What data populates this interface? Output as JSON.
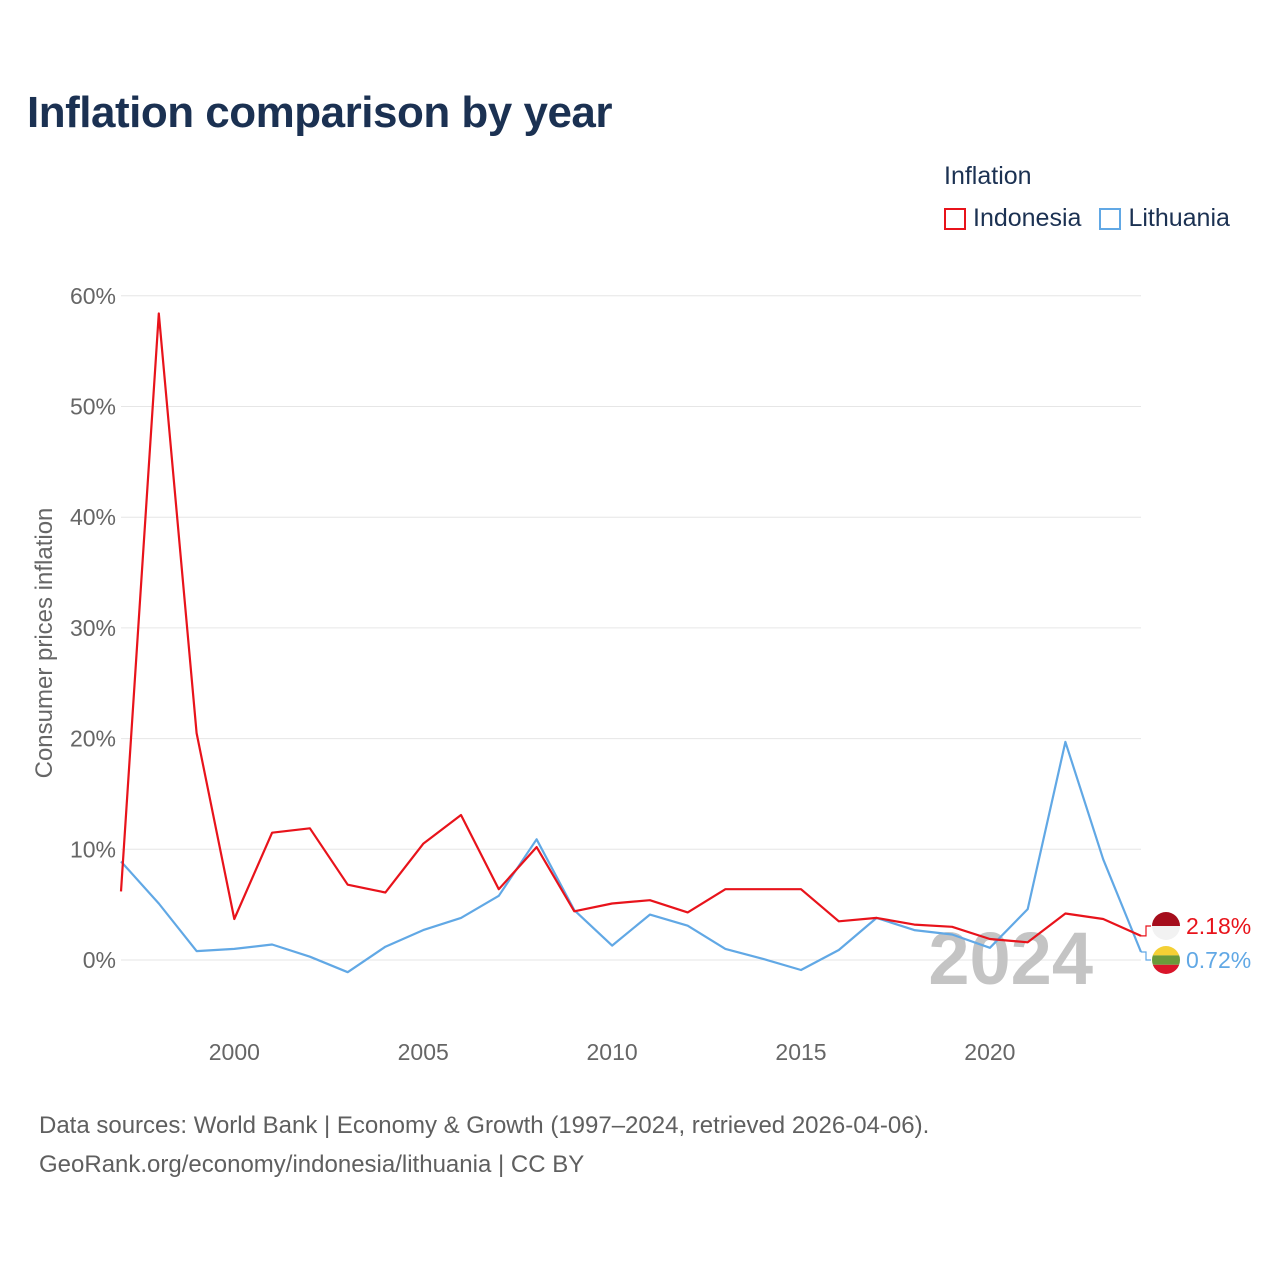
{
  "title": "Inflation comparison by year",
  "legend": {
    "title": "Inflation",
    "items": [
      {
        "label": "Indonesia",
        "color": "#e8131b"
      },
      {
        "label": "Lithuania",
        "color": "#61a8e5"
      }
    ]
  },
  "sources": {
    "line1": "Data sources: World Bank | Economy & Growth (1997–2024, retrieved 2026-04-06).",
    "line2": "GeoRank.org/economy/indonesia/lithuania | CC BY"
  },
  "chart_data": {
    "type": "line",
    "title": "Inflation comparison by year",
    "xlabel": "",
    "ylabel": "Consumer prices inflation",
    "xlim": [
      1997,
      2024
    ],
    "ylim": [
      -4,
      60
    ],
    "y_ticks": [
      0,
      10,
      20,
      30,
      40,
      50,
      60
    ],
    "y_tick_labels": [
      "0%",
      "10%",
      "20%",
      "30%",
      "40%",
      "50%",
      "60%"
    ],
    "x_ticks": [
      2000,
      2005,
      2010,
      2015,
      2020
    ],
    "x_tick_labels": [
      "2000",
      "2005",
      "2010",
      "2015",
      "2020"
    ],
    "grid": true,
    "watermark_year": "2024",
    "x": [
      1997,
      1998,
      1999,
      2000,
      2001,
      2002,
      2003,
      2004,
      2005,
      2006,
      2007,
      2008,
      2009,
      2010,
      2011,
      2012,
      2013,
      2014,
      2015,
      2016,
      2017,
      2018,
      2019,
      2020,
      2021,
      2022,
      2023,
      2024
    ],
    "series": [
      {
        "name": "Indonesia",
        "color": "#e8131b",
        "end_label": "2.18%",
        "values": [
          6.2,
          58.4,
          20.5,
          3.7,
          11.5,
          11.9,
          6.8,
          6.1,
          10.5,
          13.1,
          6.4,
          10.2,
          4.4,
          5.1,
          5.4,
          4.3,
          6.4,
          6.4,
          6.4,
          3.5,
          3.8,
          3.2,
          3.0,
          1.9,
          1.6,
          4.2,
          3.7,
          2.18
        ]
      },
      {
        "name": "Lithuania",
        "color": "#61a8e5",
        "end_label": "0.72%",
        "values": [
          8.9,
          5.1,
          0.8,
          1.0,
          1.4,
          0.3,
          -1.1,
          1.2,
          2.7,
          3.8,
          5.8,
          10.9,
          4.5,
          1.3,
          4.1,
          3.1,
          1.0,
          0.1,
          -0.9,
          0.9,
          3.8,
          2.7,
          2.3,
          1.1,
          4.6,
          19.7,
          9.1,
          0.72
        ]
      }
    ]
  }
}
